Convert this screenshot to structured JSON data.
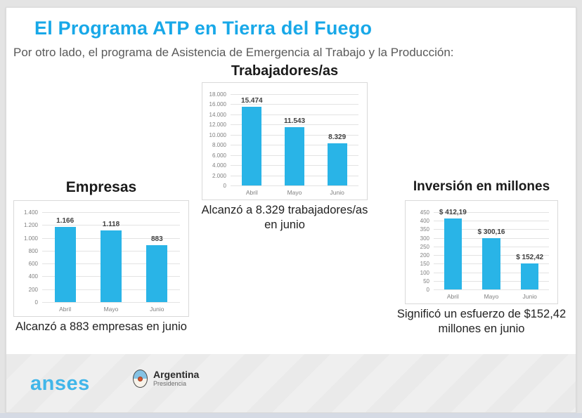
{
  "slide": {
    "title": "El Programa ATP en Tierra del Fuego",
    "subtitle": "Por otro lado, el programa de Asistencia de Emergencia al Trabajo y la Producción:"
  },
  "colors": {
    "accent": "#18a8e8",
    "bar": "#29b4e7",
    "grid": "#e3e3e3",
    "footer_bg": "#efefef",
    "anses_blue": "#41b6e9"
  },
  "chart_data": [
    {
      "id": "trabajadores",
      "type": "bar",
      "title": "Trabajadores/as",
      "categories": [
        "Abril",
        "Mayo",
        "Junio"
      ],
      "values": [
        15474,
        11543,
        8329
      ],
      "value_labels": [
        "15.474",
        "11.543",
        "8.329"
      ],
      "xlabel": "",
      "ylabel": "",
      "ylim": [
        0,
        18000
      ],
      "ytick_step": 2000,
      "ytick_labels": [
        "0",
        "2.000",
        "4.000",
        "6.000",
        "8.000",
        "10.000",
        "12.000",
        "14.000",
        "16.000",
        "18.000"
      ],
      "grid": true,
      "legend": false,
      "caption": "Alcanzó a 8.329 trabajadores/as en junio"
    },
    {
      "id": "empresas",
      "type": "bar",
      "title": "Empresas",
      "categories": [
        "Abril",
        "Mayo",
        "Junio"
      ],
      "values": [
        1166,
        1118,
        883
      ],
      "value_labels": [
        "1.166",
        "1.118",
        "883"
      ],
      "xlabel": "",
      "ylabel": "",
      "ylim": [
        0,
        1400
      ],
      "ytick_step": 200,
      "ytick_labels": [
        "0",
        "200",
        "400",
        "600",
        "800",
        "1.000",
        "1.200",
        "1.400"
      ],
      "grid": true,
      "legend": false,
      "caption": "Alcanzó a 883 empresas en junio"
    },
    {
      "id": "inversion",
      "type": "bar",
      "title": "Inversión en millones",
      "categories": [
        "Abril",
        "Mayo",
        "Junio"
      ],
      "values": [
        412.19,
        300.16,
        152.42
      ],
      "value_labels": [
        "$ 412,19",
        "$ 300,16",
        "$ 152,42"
      ],
      "xlabel": "",
      "ylabel": "",
      "ylim": [
        0,
        450
      ],
      "ytick_step": 50,
      "ytick_labels": [
        "0",
        "50",
        "100",
        "150",
        "200",
        "250",
        "300",
        "350",
        "400",
        "450"
      ],
      "grid": true,
      "legend": false,
      "caption": "Significó un esfuerzo de $152,42 millones en junio"
    }
  ],
  "footer": {
    "anses_label": "anses",
    "argentina_label": "Argentina",
    "argentina_sublabel": "Presidencia"
  }
}
